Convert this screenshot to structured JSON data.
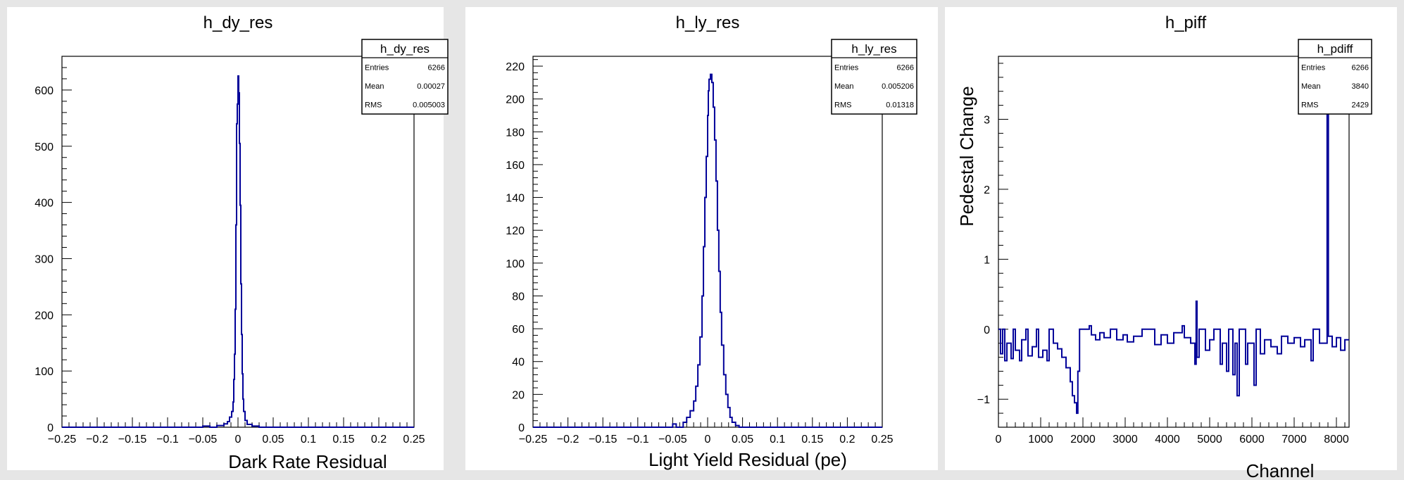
{
  "chart_data": [
    {
      "type": "histogram",
      "title": "h_dy_res",
      "xlabel": "Dark Rate Residual",
      "ylabel": "",
      "xlim": [
        -0.25,
        0.25
      ],
      "ylim": [
        0,
        660
      ],
      "x_ticks": [
        "-0.25",
        "-0.2",
        "-0.15",
        "-0.1",
        "-0.05",
        "0",
        "0.05",
        "0.1",
        "0.15",
        "0.2",
        "0.25"
      ],
      "y_ticks": [
        "0",
        "100",
        "200",
        "300",
        "400",
        "500",
        "600"
      ],
      "stats_box": {
        "name": "h_dy_res",
        "rows": [
          {
            "label": "Entries",
            "value": "6266"
          },
          {
            "label": "Mean",
            "value": "0.00027"
          },
          {
            "label": "RMS",
            "value": "0.005003"
          }
        ]
      },
      "points": [
        [
          -0.25,
          0
        ],
        [
          -0.05,
          0
        ],
        [
          -0.05,
          2
        ],
        [
          -0.04,
          2
        ],
        [
          -0.04,
          0
        ],
        [
          -0.03,
          0
        ],
        [
          -0.03,
          3
        ],
        [
          -0.02,
          3
        ],
        [
          -0.02,
          6
        ],
        [
          -0.015,
          6
        ],
        [
          -0.015,
          10
        ],
        [
          -0.012,
          10
        ],
        [
          -0.012,
          18
        ],
        [
          -0.009,
          18
        ],
        [
          -0.009,
          28
        ],
        [
          -0.007,
          28
        ],
        [
          -0.007,
          45
        ],
        [
          -0.006,
          45
        ],
        [
          -0.006,
          85
        ],
        [
          -0.005,
          85
        ],
        [
          -0.005,
          130
        ],
        [
          -0.004,
          130
        ],
        [
          -0.004,
          210
        ],
        [
          -0.003,
          210
        ],
        [
          -0.003,
          360
        ],
        [
          -0.002,
          360
        ],
        [
          -0.002,
          540
        ],
        [
          -0.001,
          540
        ],
        [
          -0.001,
          575
        ],
        [
          0,
          575
        ],
        [
          0,
          625
        ],
        [
          0.001,
          625
        ],
        [
          0.001,
          595
        ],
        [
          0.002,
          595
        ],
        [
          0.002,
          505
        ],
        [
          0.003,
          505
        ],
        [
          0.003,
          395
        ],
        [
          0.004,
          395
        ],
        [
          0.004,
          255
        ],
        [
          0.005,
          255
        ],
        [
          0.005,
          165
        ],
        [
          0.006,
          165
        ],
        [
          0.006,
          95
        ],
        [
          0.007,
          95
        ],
        [
          0.007,
          50
        ],
        [
          0.008,
          50
        ],
        [
          0.008,
          28
        ],
        [
          0.01,
          28
        ],
        [
          0.01,
          12
        ],
        [
          0.013,
          12
        ],
        [
          0.013,
          5
        ],
        [
          0.02,
          5
        ],
        [
          0.02,
          2
        ],
        [
          0.03,
          2
        ],
        [
          0.03,
          0
        ],
        [
          0.25,
          0
        ]
      ]
    },
    {
      "type": "histogram",
      "title": "h_ly_res",
      "xlabel": "Light Yield Residual (pe)",
      "ylabel": "",
      "xlim": [
        -0.25,
        0.25
      ],
      "ylim": [
        0,
        226
      ],
      "x_ticks": [
        "-0.25",
        "-0.2",
        "-0.15",
        "-0.1",
        "-0.05",
        "0",
        "0.05",
        "0.1",
        "0.15",
        "0.2",
        "0.25"
      ],
      "y_ticks": [
        "0",
        "20",
        "40",
        "60",
        "80",
        "100",
        "120",
        "140",
        "160",
        "180",
        "200",
        "220"
      ],
      "stats_box": {
        "name": "h_ly_res",
        "rows": [
          {
            "label": "Entries",
            "value": "6266"
          },
          {
            "label": "Mean",
            "value": "0.005206"
          },
          {
            "label": "RMS",
            "value": "0.01318"
          }
        ]
      },
      "points": [
        [
          -0.25,
          0
        ],
        [
          -0.05,
          0
        ],
        [
          -0.05,
          2
        ],
        [
          -0.045,
          2
        ],
        [
          -0.045,
          0
        ],
        [
          -0.035,
          0
        ],
        [
          -0.035,
          3
        ],
        [
          -0.03,
          3
        ],
        [
          -0.03,
          6
        ],
        [
          -0.025,
          6
        ],
        [
          -0.025,
          10
        ],
        [
          -0.02,
          10
        ],
        [
          -0.02,
          16
        ],
        [
          -0.017,
          16
        ],
        [
          -0.017,
          25
        ],
        [
          -0.014,
          25
        ],
        [
          -0.014,
          38
        ],
        [
          -0.011,
          38
        ],
        [
          -0.011,
          55
        ],
        [
          -0.008,
          55
        ],
        [
          -0.008,
          80
        ],
        [
          -0.006,
          80
        ],
        [
          -0.006,
          110
        ],
        [
          -0.004,
          110
        ],
        [
          -0.004,
          140
        ],
        [
          -0.002,
          140
        ],
        [
          -0.002,
          165
        ],
        [
          0,
          165
        ],
        [
          0,
          190
        ],
        [
          0.001,
          190
        ],
        [
          0.001,
          205
        ],
        [
          0.002,
          205
        ],
        [
          0.002,
          212
        ],
        [
          0.004,
          212
        ],
        [
          0.004,
          215
        ],
        [
          0.006,
          215
        ],
        [
          0.006,
          210
        ],
        [
          0.008,
          210
        ],
        [
          0.008,
          195
        ],
        [
          0.01,
          195
        ],
        [
          0.01,
          175
        ],
        [
          0.012,
          175
        ],
        [
          0.012,
          150
        ],
        [
          0.014,
          150
        ],
        [
          0.014,
          120
        ],
        [
          0.016,
          120
        ],
        [
          0.016,
          95
        ],
        [
          0.018,
          95
        ],
        [
          0.018,
          70
        ],
        [
          0.02,
          70
        ],
        [
          0.02,
          50
        ],
        [
          0.023,
          50
        ],
        [
          0.023,
          32
        ],
        [
          0.026,
          32
        ],
        [
          0.026,
          20
        ],
        [
          0.029,
          20
        ],
        [
          0.029,
          12
        ],
        [
          0.032,
          12
        ],
        [
          0.032,
          6
        ],
        [
          0.035,
          6
        ],
        [
          0.035,
          3
        ],
        [
          0.04,
          3
        ],
        [
          0.04,
          1
        ],
        [
          0.045,
          1
        ],
        [
          0.045,
          0
        ],
        [
          0.25,
          0
        ]
      ]
    },
    {
      "type": "histogram",
      "title": "h_piff",
      "xlabel": "Channel",
      "ylabel": "Pedestal Change",
      "xlim": [
        0,
        8300
      ],
      "ylim": [
        -1.4,
        3.9
      ],
      "x_ticks": [
        "0",
        "1000",
        "2000",
        "3000",
        "4000",
        "5000",
        "6000",
        "7000",
        "8000"
      ],
      "y_ticks": [
        "-1",
        "0",
        "1",
        "2",
        "3"
      ],
      "stats_box": {
        "name": "h_pdiff",
        "rows": [
          {
            "label": "Entries",
            "value": "6266"
          },
          {
            "label": "Mean",
            "value": "3840"
          },
          {
            "label": "RMS",
            "value": "2429"
          }
        ]
      },
      "points": [
        [
          0,
          0
        ],
        [
          50,
          0
        ],
        [
          50,
          -0.35
        ],
        [
          100,
          -0.35
        ],
        [
          100,
          0
        ],
        [
          150,
          0
        ],
        [
          150,
          -0.45
        ],
        [
          200,
          -0.45
        ],
        [
          200,
          -0.2
        ],
        [
          300,
          -0.2
        ],
        [
          300,
          -0.42
        ],
        [
          350,
          -0.42
        ],
        [
          350,
          0
        ],
        [
          400,
          0
        ],
        [
          400,
          -0.3
        ],
        [
          500,
          -0.3
        ],
        [
          500,
          -0.45
        ],
        [
          550,
          -0.45
        ],
        [
          550,
          -0.15
        ],
        [
          650,
          -0.15
        ],
        [
          650,
          0
        ],
        [
          700,
          0
        ],
        [
          700,
          -0.38
        ],
        [
          800,
          -0.38
        ],
        [
          800,
          -0.25
        ],
        [
          900,
          -0.25
        ],
        [
          900,
          0
        ],
        [
          950,
          0
        ],
        [
          950,
          -0.4
        ],
        [
          1050,
          -0.4
        ],
        [
          1050,
          -0.3
        ],
        [
          1150,
          -0.3
        ],
        [
          1150,
          -0.45
        ],
        [
          1200,
          -0.45
        ],
        [
          1200,
          0
        ],
        [
          1300,
          0
        ],
        [
          1300,
          -0.2
        ],
        [
          1400,
          -0.2
        ],
        [
          1400,
          -0.28
        ],
        [
          1500,
          -0.28
        ],
        [
          1500,
          -0.4
        ],
        [
          1600,
          -0.4
        ],
        [
          1600,
          -0.55
        ],
        [
          1700,
          -0.55
        ],
        [
          1700,
          -0.75
        ],
        [
          1750,
          -0.75
        ],
        [
          1750,
          -0.95
        ],
        [
          1800,
          -0.95
        ],
        [
          1800,
          -1.05
        ],
        [
          1850,
          -1.05
        ],
        [
          1850,
          -1.2
        ],
        [
          1880,
          -1.2
        ],
        [
          1880,
          -0.6
        ],
        [
          1920,
          -0.6
        ],
        [
          1920,
          0
        ],
        [
          2150,
          0
        ],
        [
          2150,
          0.05
        ],
        [
          2200,
          0.05
        ],
        [
          2200,
          -0.08
        ],
        [
          2300,
          -0.08
        ],
        [
          2300,
          -0.15
        ],
        [
          2400,
          -0.15
        ],
        [
          2400,
          -0.05
        ],
        [
          2500,
          -0.05
        ],
        [
          2500,
          -0.12
        ],
        [
          2650,
          -0.12
        ],
        [
          2650,
          0
        ],
        [
          2800,
          0
        ],
        [
          2800,
          -0.15
        ],
        [
          2950,
          -0.15
        ],
        [
          2950,
          -0.08
        ],
        [
          3050,
          -0.08
        ],
        [
          3050,
          -0.18
        ],
        [
          3200,
          -0.18
        ],
        [
          3200,
          -0.1
        ],
        [
          3400,
          -0.1
        ],
        [
          3400,
          0
        ],
        [
          3700,
          0
        ],
        [
          3700,
          -0.22
        ],
        [
          3850,
          -0.22
        ],
        [
          3850,
          -0.08
        ],
        [
          4000,
          -0.08
        ],
        [
          4000,
          -0.2
        ],
        [
          4150,
          -0.2
        ],
        [
          4150,
          -0.05
        ],
        [
          4350,
          -0.05
        ],
        [
          4350,
          0.05
        ],
        [
          4400,
          0.05
        ],
        [
          4400,
          -0.12
        ],
        [
          4550,
          -0.12
        ],
        [
          4550,
          -0.2
        ],
        [
          4650,
          -0.2
        ],
        [
          4650,
          -0.5
        ],
        [
          4680,
          -0.5
        ],
        [
          4680,
          0.4
        ],
        [
          4700,
          0.4
        ],
        [
          4700,
          -0.4
        ],
        [
          4750,
          -0.4
        ],
        [
          4750,
          0
        ],
        [
          4900,
          0
        ],
        [
          4900,
          -0.3
        ],
        [
          5000,
          -0.3
        ],
        [
          5000,
          -0.15
        ],
        [
          5100,
          -0.15
        ],
        [
          5100,
          0
        ],
        [
          5250,
          0
        ],
        [
          5250,
          -0.5
        ],
        [
          5300,
          -0.5
        ],
        [
          5300,
          -0.2
        ],
        [
          5400,
          -0.2
        ],
        [
          5400,
          -0.6
        ],
        [
          5450,
          -0.6
        ],
        [
          5450,
          0
        ],
        [
          5550,
          0
        ],
        [
          5550,
          -0.65
        ],
        [
          5600,
          -0.65
        ],
        [
          5600,
          -0.2
        ],
        [
          5650,
          -0.2
        ],
        [
          5650,
          -0.95
        ],
        [
          5700,
          -0.95
        ],
        [
          5700,
          0
        ],
        [
          5850,
          0
        ],
        [
          5850,
          -0.5
        ],
        [
          5900,
          -0.5
        ],
        [
          5900,
          -0.2
        ],
        [
          6050,
          -0.2
        ],
        [
          6050,
          -0.8
        ],
        [
          6100,
          -0.8
        ],
        [
          6100,
          0
        ],
        [
          6200,
          0
        ],
        [
          6200,
          -0.35
        ],
        [
          6300,
          -0.35
        ],
        [
          6300,
          -0.15
        ],
        [
          6450,
          -0.15
        ],
        [
          6450,
          -0.25
        ],
        [
          6600,
          -0.25
        ],
        [
          6600,
          -0.35
        ],
        [
          6700,
          -0.35
        ],
        [
          6700,
          -0.1
        ],
        [
          6850,
          -0.1
        ],
        [
          6850,
          -0.2
        ],
        [
          7000,
          -0.2
        ],
        [
          7000,
          -0.12
        ],
        [
          7150,
          -0.12
        ],
        [
          7150,
          -0.25
        ],
        [
          7250,
          -0.25
        ],
        [
          7250,
          -0.15
        ],
        [
          7400,
          -0.15
        ],
        [
          7400,
          -0.45
        ],
        [
          7450,
          -0.45
        ],
        [
          7450,
          0
        ],
        [
          7600,
          0
        ],
        [
          7600,
          -0.2
        ],
        [
          7780,
          -0.2
        ],
        [
          7780,
          3.8
        ],
        [
          7810,
          3.8
        ],
        [
          7810,
          -0.1
        ],
        [
          7900,
          -0.1
        ],
        [
          7900,
          -0.25
        ],
        [
          8000,
          -0.25
        ],
        [
          8000,
          -0.12
        ],
        [
          8100,
          -0.12
        ],
        [
          8100,
          -0.3
        ],
        [
          8200,
          -0.3
        ],
        [
          8200,
          -0.15
        ],
        [
          8300,
          -0.15
        ]
      ]
    }
  ],
  "colors": {
    "line": "#000099",
    "frame": "#000000",
    "plot_bg": "#ffffff",
    "page_bg": "#e6e6e6"
  }
}
